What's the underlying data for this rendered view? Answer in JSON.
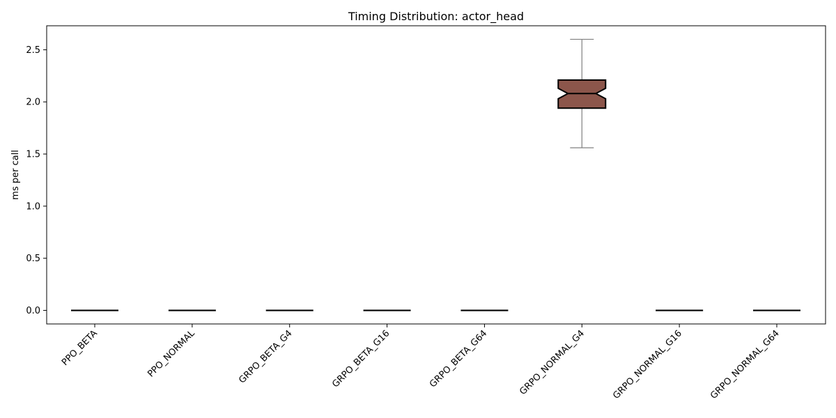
{
  "chart_data": {
    "type": "boxplot",
    "title": "Timing Distribution: actor_head",
    "xlabel": "",
    "ylabel": "ms per call",
    "categories": [
      "PPO_BETA",
      "PPO_NORMAL",
      "GRPO_BETA_G4",
      "GRPO_BETA_G16",
      "GRPO_BETA_G64",
      "GRPO_NORMAL_G4",
      "GRPO_NORMAL_G16",
      "GRPO_NORMAL_G64"
    ],
    "boxes": [
      {
        "whisker_low": 0.0,
        "q1": 0.0,
        "median": 0.0,
        "q3": 0.0,
        "whisker_high": 0.0,
        "color": "#1f77b4"
      },
      {
        "whisker_low": 0.0,
        "q1": 0.0,
        "median": 0.0,
        "q3": 0.0,
        "whisker_high": 0.0,
        "color": "#ff7f0e"
      },
      {
        "whisker_low": 0.0,
        "q1": 0.0,
        "median": 0.0,
        "q3": 0.0,
        "whisker_high": 0.0,
        "color": "#2ca02c"
      },
      {
        "whisker_low": 0.0,
        "q1": 0.0,
        "median": 0.0,
        "q3": 0.0,
        "whisker_high": 0.0,
        "color": "#d62728"
      },
      {
        "whisker_low": 0.0,
        "q1": 0.0,
        "median": 0.0,
        "q3": 0.0,
        "whisker_high": 0.0,
        "color": "#9467bd"
      },
      {
        "whisker_low": 1.56,
        "q1": 1.94,
        "median": 2.08,
        "q3": 2.21,
        "whisker_high": 2.6,
        "notch_low": 2.03,
        "notch_high": 2.13,
        "color": "#8c564b"
      },
      {
        "whisker_low": 0.0,
        "q1": 0.0,
        "median": 0.0,
        "q3": 0.0,
        "whisker_high": 0.0,
        "color": "#e377c2"
      },
      {
        "whisker_low": 0.0,
        "q1": 0.0,
        "median": 0.0,
        "q3": 0.0,
        "whisker_high": 0.0,
        "color": "#7f7f7f"
      }
    ],
    "yticks": [
      "0.0",
      "0.5",
      "1.0",
      "1.5",
      "2.0",
      "2.5"
    ],
    "ytick_values": [
      0.0,
      0.5,
      1.0,
      1.5,
      2.0,
      2.5
    ],
    "ylim": [
      -0.13,
      2.73
    ],
    "notched": true,
    "grid": false,
    "legend": "none"
  }
}
